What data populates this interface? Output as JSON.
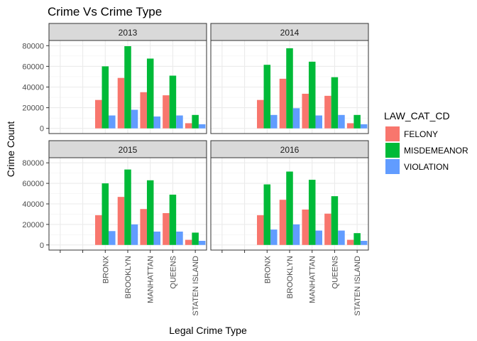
{
  "chart_data": {
    "type": "bar",
    "title": "Crime Vs Crime Type",
    "xlabel": "Legal Crime Type",
    "ylabel": "Crime Count",
    "legend_title": "LAW_CAT_CD",
    "legend_position": "right",
    "grid": true,
    "ylim": [
      -5000,
      85000
    ],
    "yticks": [
      0,
      20000,
      40000,
      60000,
      80000
    ],
    "categories": [
      "BRONX",
      "BROOKLYN",
      "MANHATTAN",
      "QUEENS",
      "STATEN ISLAND"
    ],
    "series_colors": {
      "FELONY": "#F8766D",
      "MISDEMEANOR": "#00BA38",
      "VIOLATION": "#619CFF"
    },
    "panels": [
      {
        "label": "2013",
        "series": [
          {
            "name": "FELONY",
            "values": [
              27500,
              48800,
              35000,
              32000,
              5000
            ]
          },
          {
            "name": "MISDEMEANOR",
            "values": [
              60000,
              79500,
              67500,
              51000,
              13000
            ]
          },
          {
            "name": "VIOLATION",
            "values": [
              12500,
              18000,
              11500,
              12500,
              4000
            ]
          }
        ]
      },
      {
        "label": "2014",
        "series": [
          {
            "name": "FELONY",
            "values": [
              27500,
              48000,
              33500,
              31500,
              5000
            ]
          },
          {
            "name": "MISDEMEANOR",
            "values": [
              61500,
              77500,
              64500,
              49500,
              13000
            ]
          },
          {
            "name": "VIOLATION",
            "values": [
              13000,
              19500,
              12500,
              13000,
              4000
            ]
          }
        ]
      },
      {
        "label": "2015",
        "series": [
          {
            "name": "FELONY",
            "values": [
              29000,
              46800,
              35000,
              31000,
              5000
            ]
          },
          {
            "name": "MISDEMEANOR",
            "values": [
              60000,
              73500,
              63000,
              49000,
              12000
            ]
          },
          {
            "name": "VIOLATION",
            "values": [
              13500,
              20000,
              13000,
              13000,
              4000
            ]
          }
        ]
      },
      {
        "label": "2016",
        "series": [
          {
            "name": "FELONY",
            "values": [
              29000,
              44000,
              34500,
              30500,
              5000
            ]
          },
          {
            "name": "MISDEMEANOR",
            "values": [
              59000,
              71500,
              63500,
              47500,
              11500
            ]
          },
          {
            "name": "VIOLATION",
            "values": [
              15000,
              20000,
              14000,
              14000,
              4000
            ]
          }
        ]
      }
    ]
  }
}
